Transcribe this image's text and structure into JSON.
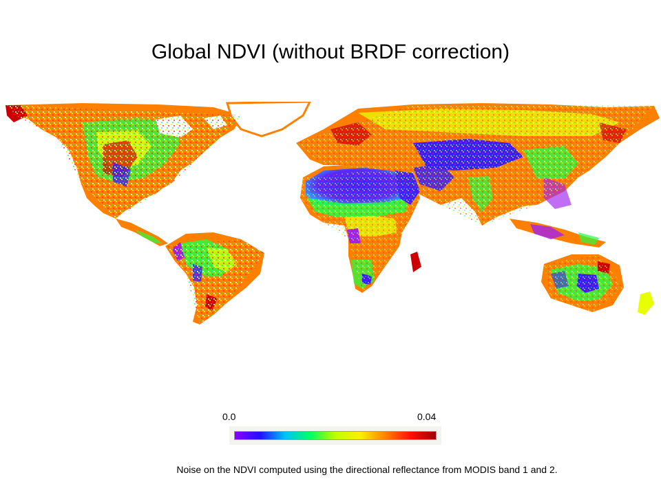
{
  "slide": {
    "title": "Global NDVI (without BRDF correction)",
    "caption": "Noise on the NDVI computed using the directional reflectance from MODIS band 1 and 2."
  },
  "colorbar": {
    "min_label": "0.0",
    "max_label": "0.04",
    "stops": [
      "#8b00ff",
      "#1f10ff",
      "#00c0ff",
      "#00ff60",
      "#c0ff00",
      "#ffee00",
      "#ff8000",
      "#ff1000",
      "#a00000"
    ]
  },
  "map": {
    "land_colors": {
      "noise_low": "#3a1aff",
      "noise_lowmid": "#a020f0",
      "noise_mid": "#22ff40",
      "noise_midhigh": "#e8ff00",
      "noise_high": "#ff8000",
      "noise_highest": "#cc0000"
    }
  }
}
